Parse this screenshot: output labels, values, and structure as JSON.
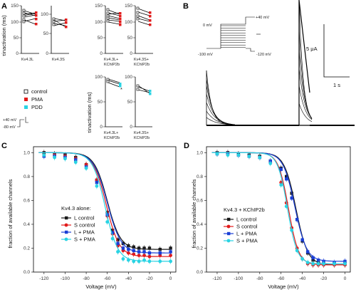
{
  "panels": {
    "a": {
      "label": "A",
      "top_ylabel": "τinactivation (ms)",
      "bottom_ylabel": "τinactivation (ms)",
      "top_groups": [
        {
          "name": "Kv4.3L",
          "ticks": [
            "0",
            "50",
            "100",
            "150"
          ]
        },
        {
          "name": "Kv4.3S",
          "ticks": [
            "0",
            "50",
            "100"
          ]
        },
        {
          "name": "Kv4.3L+ KChIP2b",
          "ticks": [
            "0",
            "50",
            "100",
            "150"
          ]
        },
        {
          "name": "Kv4.3S+ KChIP2b",
          "ticks": [
            "0",
            "50",
            "100",
            "150"
          ]
        }
      ],
      "bottom_groups": [
        {
          "name": "Kv4.3L+ KChIP2b",
          "ticks": [
            "0",
            "50",
            "100"
          ],
          "marker": "*"
        },
        {
          "name": "Kv4.3S+ KChIP2b",
          "ticks": [
            "0",
            "50",
            "100"
          ]
        }
      ],
      "legend": [
        {
          "label": "control",
          "color": "#ffffff",
          "stroke": "#000000"
        },
        {
          "label": "PMA",
          "color": "#e21a1a",
          "stroke": "#e21a1a"
        },
        {
          "label": "PDD",
          "color": "#29d3e3",
          "stroke": "#29d3e3"
        }
      ],
      "protocol_labels": {
        "v_hold": "+40 mV",
        "v_rest": "-80 mV"
      }
    },
    "b": {
      "label": "B",
      "protocol": {
        "v0": "0 mV",
        "vtop": "+40 mV",
        "vlow": "-100 mV",
        "vend": "-120 mV"
      },
      "scale_current": "5 μA",
      "scale_time": "1 s"
    },
    "c": {
      "label": "C",
      "legend_title": "Kv4.3 alone:",
      "legend": [
        "L control",
        "S control",
        "L + PMA",
        "S + PMA"
      ],
      "xlabel": "Voltage (mV)",
      "ylabel": "fraction of available channels"
    },
    "d": {
      "label": "D",
      "legend_title": "Kv4.3 + KChIP2b",
      "legend": [
        "L control",
        "S control",
        "L + PMA",
        "S + PMA"
      ],
      "xlabel": "Voltage (mV)",
      "ylabel": "fraction of available channels"
    }
  },
  "colors": {
    "black": "#1a1a1a",
    "red": "#e21a1a",
    "blue": "#1a3fd6",
    "cyan": "#29d3e3"
  },
  "chart_data": [
    {
      "type": "scatter",
      "panel": "C",
      "xlabel": "Voltage (mV)",
      "ylabel": "fraction of available channels",
      "xlim": [
        -130,
        5
      ],
      "ylim": [
        0,
        1.05
      ],
      "x_ticks": [
        -120,
        -100,
        -80,
        -60,
        -40,
        -20,
        0
      ],
      "y_ticks": [
        0.0,
        0.2,
        0.4,
        0.6,
        0.8,
        1.0
      ],
      "x": [
        -120,
        -110,
        -100,
        -90,
        -80,
        -70,
        -60,
        -55,
        -50,
        -45,
        -40,
        -35,
        -30,
        -25,
        -20,
        -10,
        0
      ],
      "series": [
        {
          "name": "L control",
          "color": "black",
          "marker": "square",
          "v_half": -60,
          "k": 6.2,
          "bottom": 0.19,
          "values": [
            1.0,
            0.99,
            0.98,
            0.96,
            0.9,
            0.77,
            0.5,
            0.35,
            0.27,
            0.24,
            0.22,
            0.21,
            0.2,
            0.2,
            0.2,
            0.19,
            0.2
          ]
        },
        {
          "name": "S control",
          "color": "red",
          "marker": "circle",
          "v_half": -61,
          "k": 6.2,
          "bottom": 0.13,
          "values": [
            0.98,
            0.98,
            0.97,
            0.95,
            0.9,
            0.77,
            0.47,
            0.32,
            0.22,
            0.18,
            0.16,
            0.15,
            0.14,
            0.14,
            0.13,
            0.14,
            0.14
          ]
        },
        {
          "name": "L + PMA",
          "color": "blue",
          "marker": "square",
          "v_half": -60,
          "k": 6.5,
          "bottom": 0.16,
          "values": [
            0.97,
            0.97,
            0.96,
            0.94,
            0.88,
            0.75,
            0.48,
            0.33,
            0.24,
            0.2,
            0.19,
            0.18,
            0.17,
            0.17,
            0.16,
            0.16,
            0.17
          ]
        },
        {
          "name": "S + PMA",
          "color": "cyan",
          "marker": "circle",
          "v_half": -62,
          "k": 6.0,
          "bottom": 0.09,
          "values": [
            0.98,
            0.96,
            0.95,
            0.92,
            0.87,
            0.72,
            0.42,
            0.28,
            0.17,
            0.11,
            0.1,
            0.09,
            0.09,
            0.1,
            0.09,
            0.09,
            0.09
          ]
        }
      ]
    },
    {
      "type": "scatter",
      "panel": "D",
      "xlabel": "Voltage (mV)",
      "ylabel": "fraction of available channels",
      "xlim": [
        -130,
        5
      ],
      "ylim": [
        0,
        1.05
      ],
      "x_ticks": [
        -120,
        -100,
        -80,
        -60,
        -40,
        -20,
        0
      ],
      "y_ticks": [
        0.0,
        0.2,
        0.4,
        0.6,
        0.8,
        1.0
      ],
      "x": [
        -120,
        -110,
        -100,
        -90,
        -80,
        -70,
        -60,
        -55,
        -50,
        -45,
        -40,
        -35,
        -30,
        -25,
        -20,
        -10,
        0
      ],
      "series": [
        {
          "name": "L control",
          "color": "black",
          "marker": "square",
          "v_half": -46,
          "k": 5.5,
          "bottom": 0.06,
          "values": [
            1.0,
            1.0,
            0.99,
            0.98,
            0.97,
            0.93,
            0.87,
            0.8,
            0.66,
            0.44,
            0.26,
            0.16,
            0.1,
            0.08,
            0.07,
            0.07,
            0.07
          ]
        },
        {
          "name": "S control",
          "color": "red",
          "marker": "circle",
          "v_half": -53,
          "k": 4.8,
          "bottom": 0.06,
          "values": [
            0.99,
            0.99,
            0.98,
            0.97,
            0.96,
            0.92,
            0.75,
            0.58,
            0.37,
            0.2,
            0.11,
            0.07,
            0.06,
            0.06,
            0.06,
            0.06,
            0.06
          ]
        },
        {
          "name": "L + PMA",
          "color": "blue",
          "marker": "square",
          "v_half": -47,
          "k": 5.5,
          "bottom": 0.09,
          "values": [
            0.99,
            0.99,
            0.98,
            0.97,
            0.96,
            0.93,
            0.86,
            0.78,
            0.62,
            0.44,
            0.27,
            0.17,
            0.12,
            0.1,
            0.09,
            0.08,
            0.09
          ]
        },
        {
          "name": "S + PMA",
          "color": "cyan",
          "marker": "circle",
          "v_half": -54,
          "k": 4.6,
          "bottom": 0.07,
          "values": [
            0.99,
            0.98,
            0.98,
            0.97,
            0.96,
            0.91,
            0.73,
            0.55,
            0.35,
            0.18,
            0.11,
            0.08,
            0.07,
            0.07,
            0.07,
            0.07,
            0.07
          ]
        }
      ]
    }
  ]
}
